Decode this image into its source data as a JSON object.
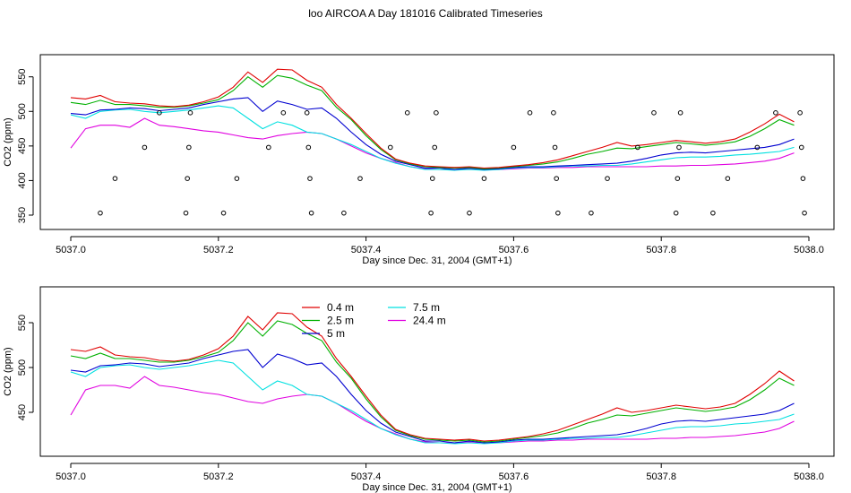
{
  "title": "loo AIRCOA A  Day 181016  Calibrated Timeseries",
  "colors": {
    "0.4 m": "#e00000",
    "2.5 m": "#00b000",
    "5 m": "#0000d0",
    "7.5 m": "#00e0e0",
    "24.4 m": "#e000e0",
    "axis": "#000000",
    "points": "#000000"
  },
  "chart_data": [
    {
      "type": "line",
      "xlabel": "Day since Dec. 31, 2004 (GMT+1)",
      "ylabel": "CO2 (ppm)",
      "xlim": [
        5037.0,
        5038.0
      ],
      "ylim": [
        350,
        560
      ],
      "xticks": [
        "5037.0",
        "5037.2",
        "5037.4",
        "5037.6",
        "5037.8",
        "5038.0"
      ],
      "yticks": [
        "350",
        "400",
        "450",
        "500",
        "550"
      ],
      "legend": "none",
      "x": [
        5037.0,
        5037.02,
        5037.04,
        5037.06,
        5037.08,
        5037.1,
        5037.12,
        5037.14,
        5037.16,
        5037.18,
        5037.2,
        5037.22,
        5037.24,
        5037.26,
        5037.28,
        5037.3,
        5037.32,
        5037.34,
        5037.36,
        5037.38,
        5037.4,
        5037.42,
        5037.44,
        5037.46,
        5037.48,
        5037.5,
        5037.52,
        5037.54,
        5037.56,
        5037.58,
        5037.6,
        5037.62,
        5037.64,
        5037.66,
        5037.68,
        5037.7,
        5037.72,
        5037.74,
        5037.76,
        5037.78,
        5037.8,
        5037.82,
        5037.84,
        5037.86,
        5037.88,
        5037.9,
        5037.92,
        5037.94,
        5037.96,
        5037.98
      ],
      "series": [
        {
          "name": "0.4 m",
          "values": [
            520,
            518,
            523,
            514,
            512,
            511,
            508,
            507,
            509,
            514,
            521,
            535,
            557,
            542,
            561,
            560,
            545,
            535,
            510,
            490,
            468,
            447,
            431,
            425,
            421,
            420,
            419,
            420,
            418,
            419,
            421,
            423,
            426,
            430,
            436,
            442,
            448,
            455,
            450,
            452,
            455,
            458,
            456,
            454,
            456,
            460,
            470,
            482,
            496,
            485
          ]
        },
        {
          "name": "2.5 m",
          "values": [
            513,
            510,
            516,
            510,
            510,
            508,
            506,
            506,
            508,
            512,
            517,
            530,
            550,
            535,
            552,
            548,
            538,
            530,
            506,
            488,
            465,
            445,
            430,
            424,
            420,
            419,
            418,
            419,
            417,
            418,
            420,
            422,
            424,
            427,
            432,
            438,
            442,
            447,
            446,
            449,
            452,
            455,
            453,
            451,
            453,
            456,
            464,
            475,
            488,
            480
          ]
        },
        {
          "name": "5 m",
          "values": [
            497,
            495,
            502,
            503,
            505,
            504,
            501,
            503,
            505,
            510,
            514,
            518,
            520,
            500,
            515,
            510,
            503,
            505,
            490,
            470,
            452,
            438,
            428,
            423,
            418,
            418,
            416,
            418,
            416,
            417,
            419,
            420,
            420,
            421,
            422,
            423,
            424,
            425,
            428,
            432,
            437,
            440,
            441,
            440,
            442,
            444,
            446,
            448,
            452,
            460
          ]
        },
        {
          "name": "7.5 m",
          "values": [
            495,
            490,
            500,
            502,
            503,
            500,
            498,
            500,
            502,
            505,
            508,
            505,
            490,
            475,
            485,
            480,
            470,
            468,
            460,
            452,
            442,
            432,
            425,
            420,
            416,
            416,
            415,
            416,
            415,
            416,
            418,
            419,
            419,
            420,
            421,
            421,
            422,
            422,
            424,
            427,
            430,
            433,
            434,
            434,
            435,
            437,
            438,
            440,
            442,
            448
          ]
        },
        {
          "name": "24.4 m",
          "values": [
            447,
            475,
            480,
            480,
            477,
            490,
            480,
            478,
            475,
            472,
            470,
            466,
            462,
            460,
            465,
            468,
            470,
            468,
            460,
            450,
            440,
            432,
            426,
            420,
            417,
            416,
            416,
            417,
            416,
            416,
            417,
            418,
            418,
            419,
            419,
            420,
            420,
            420,
            420,
            420,
            421,
            421,
            422,
            422,
            423,
            424,
            426,
            428,
            432,
            440
          ]
        }
      ],
      "points": [
        [
          5037.04,
          353
        ],
        [
          5037.06,
          403
        ],
        [
          5037.1,
          448
        ],
        [
          5037.12,
          498
        ],
        [
          5037.156,
          353
        ],
        [
          5037.158,
          403
        ],
        [
          5037.16,
          448
        ],
        [
          5037.162,
          498
        ],
        [
          5037.207,
          353
        ],
        [
          5037.225,
          403
        ],
        [
          5037.268,
          448
        ],
        [
          5037.288,
          498
        ],
        [
          5037.32,
          498
        ],
        [
          5037.322,
          448
        ],
        [
          5037.324,
          403
        ],
        [
          5037.326,
          353
        ],
        [
          5037.37,
          353
        ],
        [
          5037.392,
          403
        ],
        [
          5037.433,
          448
        ],
        [
          5037.456,
          498
        ],
        [
          5037.488,
          353
        ],
        [
          5037.49,
          403
        ],
        [
          5037.493,
          448
        ],
        [
          5037.495,
          498
        ],
        [
          5037.54,
          353
        ],
        [
          5037.56,
          403
        ],
        [
          5037.6,
          448
        ],
        [
          5037.622,
          498
        ],
        [
          5037.654,
          498
        ],
        [
          5037.656,
          448
        ],
        [
          5037.658,
          403
        ],
        [
          5037.66,
          353
        ],
        [
          5037.705,
          353
        ],
        [
          5037.727,
          403
        ],
        [
          5037.768,
          448
        ],
        [
          5037.79,
          498
        ],
        [
          5037.82,
          353
        ],
        [
          5037.822,
          403
        ],
        [
          5037.824,
          448
        ],
        [
          5037.826,
          498
        ],
        [
          5037.87,
          353
        ],
        [
          5037.89,
          403
        ],
        [
          5037.93,
          448
        ],
        [
          5037.955,
          498
        ],
        [
          5037.988,
          498
        ],
        [
          5037.99,
          448
        ],
        [
          5037.992,
          403
        ],
        [
          5037.994,
          353
        ]
      ]
    },
    {
      "type": "line",
      "xlabel": "Day since Dec. 31, 2004 (GMT+1)",
      "ylabel": "CO2 (ppm)",
      "xlim": [
        5037.0,
        5038.0
      ],
      "ylim": [
        410,
        568
      ],
      "xticks": [
        "5037.0",
        "5037.2",
        "5037.4",
        "5037.6",
        "5037.8",
        "5038.0"
      ],
      "yticks": [
        "450",
        "500",
        "550"
      ],
      "legend": "top-center",
      "x": [
        5037.0,
        5037.02,
        5037.04,
        5037.06,
        5037.08,
        5037.1,
        5037.12,
        5037.14,
        5037.16,
        5037.18,
        5037.2,
        5037.22,
        5037.24,
        5037.26,
        5037.28,
        5037.3,
        5037.32,
        5037.34,
        5037.36,
        5037.38,
        5037.4,
        5037.42,
        5037.44,
        5037.46,
        5037.48,
        5037.5,
        5037.52,
        5037.54,
        5037.56,
        5037.58,
        5037.6,
        5037.62,
        5037.64,
        5037.66,
        5037.68,
        5037.7,
        5037.72,
        5037.74,
        5037.76,
        5037.78,
        5037.8,
        5037.82,
        5037.84,
        5037.86,
        5037.88,
        5037.9,
        5037.92,
        5037.94,
        5037.96,
        5037.98
      ],
      "series": [
        {
          "name": "0.4 m",
          "values": [
            520,
            518,
            523,
            514,
            512,
            511,
            508,
            507,
            509,
            514,
            521,
            535,
            557,
            542,
            561,
            560,
            545,
            535,
            510,
            490,
            468,
            447,
            431,
            425,
            421,
            420,
            419,
            420,
            418,
            419,
            421,
            423,
            426,
            430,
            436,
            442,
            448,
            455,
            450,
            452,
            455,
            458,
            456,
            454,
            456,
            460,
            470,
            482,
            496,
            485
          ]
        },
        {
          "name": "2.5 m",
          "values": [
            513,
            510,
            516,
            510,
            510,
            508,
            506,
            506,
            508,
            512,
            517,
            530,
            550,
            535,
            552,
            548,
            538,
            530,
            506,
            488,
            465,
            445,
            430,
            424,
            420,
            419,
            418,
            419,
            417,
            418,
            420,
            422,
            424,
            427,
            432,
            438,
            442,
            447,
            446,
            449,
            452,
            455,
            453,
            451,
            453,
            456,
            464,
            475,
            488,
            480
          ]
        },
        {
          "name": "5 m",
          "values": [
            497,
            495,
            502,
            503,
            505,
            504,
            501,
            503,
            505,
            510,
            514,
            518,
            520,
            500,
            515,
            510,
            503,
            505,
            490,
            470,
            452,
            438,
            428,
            423,
            418,
            418,
            416,
            418,
            416,
            417,
            419,
            420,
            420,
            421,
            422,
            423,
            424,
            425,
            428,
            432,
            437,
            440,
            441,
            440,
            442,
            444,
            446,
            448,
            452,
            460
          ]
        },
        {
          "name": "7.5 m",
          "values": [
            495,
            490,
            500,
            502,
            503,
            500,
            498,
            500,
            502,
            505,
            508,
            505,
            490,
            475,
            485,
            480,
            470,
            468,
            460,
            452,
            442,
            432,
            425,
            420,
            416,
            416,
            415,
            416,
            415,
            416,
            418,
            419,
            419,
            420,
            421,
            421,
            422,
            422,
            424,
            427,
            430,
            433,
            434,
            434,
            435,
            437,
            438,
            440,
            442,
            448
          ]
        },
        {
          "name": "24.4 m",
          "values": [
            447,
            475,
            480,
            480,
            477,
            490,
            480,
            478,
            475,
            472,
            470,
            466,
            462,
            460,
            465,
            468,
            470,
            468,
            460,
            450,
            440,
            432,
            426,
            420,
            417,
            416,
            416,
            417,
            416,
            416,
            417,
            418,
            418,
            419,
            419,
            420,
            420,
            420,
            420,
            420,
            421,
            421,
            422,
            422,
            423,
            424,
            426,
            428,
            432,
            440
          ]
        }
      ]
    }
  ]
}
